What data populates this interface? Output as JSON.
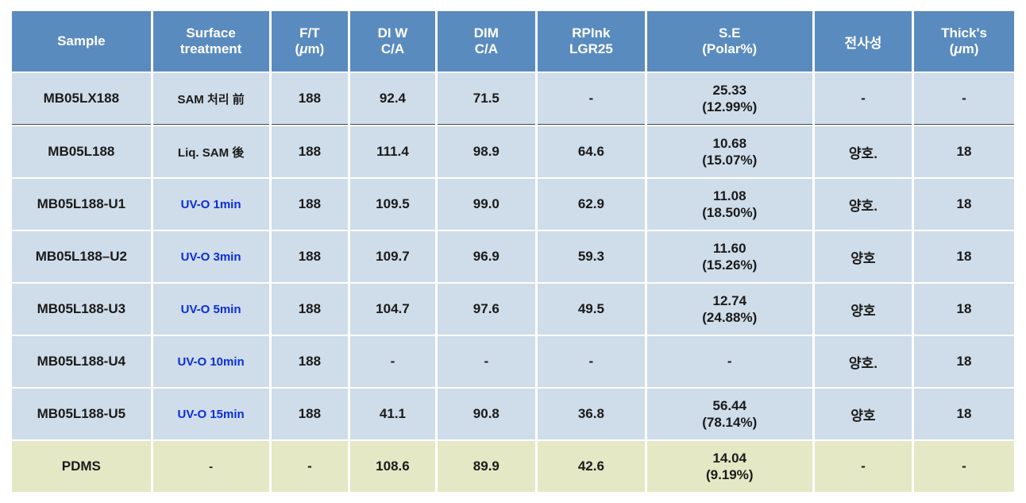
{
  "colors": {
    "header_bg": "#5a8bbf",
    "header_fg": "#ffffff",
    "row_bg": "#cfdce9",
    "pdms_bg": "#e4e8c4",
    "text": "#1a1a1a",
    "uv_text": "#0a2fd6"
  },
  "headers": {
    "sample": "Sample",
    "surface": "Surface\ntreatment",
    "ft_l1": "F/T",
    "ft_l2_open": "(",
    "ft_l2_mu": "μ",
    "ft_l2_rest": "m)",
    "diw_l1": "DI W",
    "diw_l2": "C/A",
    "dim_l1": "DIM",
    "dim_l2": "C/A",
    "rp_l1": "RPInk",
    "rp_l2": "LGR25",
    "se_l1": "S.E",
    "se_l2": "(Polar%)",
    "trans": "전사성",
    "thick_l1": "Thick's",
    "thick_l2_open": "(",
    "thick_l2_mu": "μ",
    "thick_l2_rest": "m)"
  },
  "rows": [
    {
      "sample": "MB05LX188",
      "surface": "SAM 처리 前",
      "surface_style": "plain",
      "ft": "188",
      "diw": "92.4",
      "dim": "71.5",
      "rp": "-",
      "se_v": "25.33",
      "se_p": "(12.99%)",
      "trans": "-",
      "thick": "-",
      "divider_after": true
    },
    {
      "sample": "MB05L188",
      "surface": "Liq. SAM 後",
      "surface_style": "plain",
      "ft": "188",
      "diw": "111.4",
      "dim": "98.9",
      "rp": "64.6",
      "se_v": "10.68",
      "se_p": "(15.07%)",
      "trans": "양호.",
      "thick": "18"
    },
    {
      "sample": "MB05L188-U1",
      "surface": "UV-O 1min",
      "surface_style": "uv",
      "ft": "188",
      "diw": "109.5",
      "dim": "99.0",
      "rp": "62.9",
      "se_v": "11.08",
      "se_p": "(18.50%)",
      "trans": "양호.",
      "thick": "18"
    },
    {
      "sample": "MB05L188–U2",
      "surface": "UV-O 3min",
      "surface_style": "uv",
      "ft": "188",
      "diw": "109.7",
      "dim": "96.9",
      "rp": "59.3",
      "se_v": "11.60",
      "se_p": "(15.26%)",
      "trans": "양호",
      "thick": "18"
    },
    {
      "sample": "MB05L188-U3",
      "surface": "UV-O 5min",
      "surface_style": "uv",
      "ft": "188",
      "diw": "104.7",
      "dim": "97.6",
      "rp": "49.5",
      "se_v": "12.74",
      "se_p": "(24.88%)",
      "trans": "양호",
      "thick": "18"
    },
    {
      "sample": "MB05L188-U4",
      "surface": "UV-O 10min",
      "surface_style": "uv",
      "ft": "188",
      "diw": "-",
      "dim": "-",
      "rp": "-",
      "se_v": "-",
      "se_p": "",
      "trans": "양호.",
      "thick": "18"
    },
    {
      "sample": "MB05L188-U5",
      "surface": "UV-O 15min",
      "surface_style": "uv",
      "ft": "188",
      "diw": "41.1",
      "dim": "90.8",
      "rp": "36.8",
      "se_v": "56.44",
      "se_p": "(78.14%)",
      "trans": "양호",
      "thick": "18"
    },
    {
      "sample": "PDMS",
      "surface": "-",
      "surface_style": "plain",
      "ft": "-",
      "diw": "108.6",
      "dim": "89.9",
      "rp": "42.6",
      "se_v": "14.04",
      "se_p": "(9.19%)",
      "trans": "-",
      "thick": "-",
      "pdms": true
    }
  ]
}
